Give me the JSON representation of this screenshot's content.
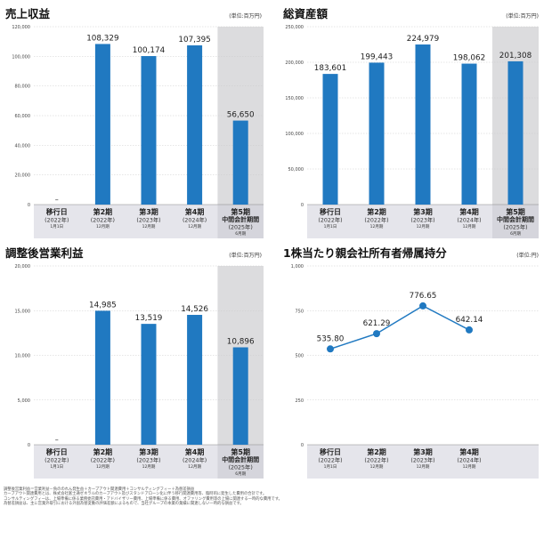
{
  "colors": {
    "bar": "#2079c1",
    "line": "#2079c1",
    "shade": "#dcdcde",
    "axis_band": "#d0d0da",
    "grid": "#cccccc"
  },
  "chart_data": [
    {
      "type": "bar",
      "title": "売上収益",
      "unit": "(単位:百万円)",
      "ylim": [
        0,
        120000
      ],
      "yticks": [
        "0",
        "20,000",
        "40,000",
        "60,000",
        "80,000",
        "100,000",
        "120,000"
      ],
      "ytick_values": [
        0,
        20000,
        40000,
        60000,
        80000,
        100000,
        120000
      ],
      "categories": [
        {
          "period": "移行日",
          "year": "(2022年)",
          "month": "1月1日"
        },
        {
          "period": "第2期",
          "year": "(2022年)",
          "month": "12月期"
        },
        {
          "period": "第3期",
          "year": "(2023年)",
          "month": "12月期"
        },
        {
          "period": "第4期",
          "year": "(2024年)",
          "month": "12月期"
        },
        {
          "period": "第5期",
          "period2": "中間会計期間",
          "year": "(2025年)",
          "month": "6月期"
        }
      ],
      "values": [
        null,
        108329,
        100174,
        107395,
        56650
      ],
      "labels": [
        "–",
        "108,329",
        "100,174",
        "107,395",
        "56,650"
      ],
      "highlight_index": 4
    },
    {
      "type": "bar",
      "title": "総資産額",
      "unit": "(単位:百万円)",
      "ylim": [
        0,
        250000
      ],
      "yticks": [
        "0",
        "50,000",
        "100,000",
        "150,000",
        "200,000",
        "250,000"
      ],
      "ytick_values": [
        0,
        50000,
        100000,
        150000,
        200000,
        250000
      ],
      "categories": [
        {
          "period": "移行日",
          "year": "(2022年)",
          "month": "1月1日"
        },
        {
          "period": "第2期",
          "year": "(2022年)",
          "month": "12月期"
        },
        {
          "period": "第3期",
          "year": "(2023年)",
          "month": "12月期"
        },
        {
          "period": "第4期",
          "year": "(2024年)",
          "month": "12月期"
        },
        {
          "period": "第5期",
          "period2": "中間会計期間",
          "year": "(2025年)",
          "month": "6月期"
        }
      ],
      "values": [
        183601,
        199443,
        224979,
        198062,
        201308
      ],
      "labels": [
        "183,601",
        "199,443",
        "224,979",
        "198,062",
        "201,308"
      ],
      "highlight_index": 4
    },
    {
      "type": "bar",
      "title": "調整後営業利益",
      "unit": "(単位:百万円)",
      "ylim": [
        0,
        20000
      ],
      "yticks": [
        "0",
        "5,000",
        "10,000",
        "15,000",
        "20,000"
      ],
      "ytick_values": [
        0,
        5000,
        10000,
        15000,
        20000
      ],
      "categories": [
        {
          "period": "移行日",
          "year": "(2022年)",
          "month": "1月1日"
        },
        {
          "period": "第2期",
          "year": "(2022年)",
          "month": "12月期"
        },
        {
          "period": "第3期",
          "year": "(2023年)",
          "month": "12月期"
        },
        {
          "period": "第4期",
          "year": "(2024年)",
          "month": "12月期"
        },
        {
          "period": "第5期",
          "period2": "中間会計期間",
          "year": "(2025年)",
          "month": "6月期"
        }
      ],
      "values": [
        null,
        14985,
        13519,
        14526,
        10896
      ],
      "labels": [
        "–",
        "14,985",
        "13,519",
        "14,526",
        "10,896"
      ],
      "highlight_index": 4
    },
    {
      "type": "line",
      "title": "1株当たり親会社所有者帰属持分",
      "unit": "(単位:円)",
      "ylim": [
        0,
        1000
      ],
      "yticks": [
        "0",
        "250",
        "500",
        "750",
        "1,000"
      ],
      "ytick_values": [
        0,
        250,
        500,
        750,
        1000
      ],
      "categories": [
        {
          "period": "移行日",
          "year": "(2022年)",
          "month": "1月1日"
        },
        {
          "period": "第2期",
          "year": "(2022年)",
          "month": "12月期"
        },
        {
          "period": "第3期",
          "year": "(2023年)",
          "month": "12月期"
        },
        {
          "period": "第4期",
          "year": "(2024年)",
          "month": "12月期"
        }
      ],
      "values": [
        535.8,
        621.29,
        776.65,
        642.14
      ],
      "labels": [
        "535.80",
        "621.29",
        "776.65",
        "642.14"
      ],
      "highlight_index": null
    }
  ],
  "notes": [
    "調整後営業利益＝営業利益－負ののれん発生益＋カーブアウト関連費用＋コンサルティングフィー＋為替差損益",
    "カーブアウト関連費用とは、株式会社富士通ゼネラルのカーブアウト及びスタンドアローン化に伴う移行関連費用等、臨時的に発生した費用の合計です。",
    "コンサルティングフィーは、上場準備に係る業務委託費用・アドバイザリー費用、上場準備に係る費用、オファリング費用等の上場に関連する一時的な費用です。",
    "為替差損益は、主に営業外取引における外国為替変動の評価差額によるもので、当社グループの本業の業績に関連しない一時的な損益です。"
  ]
}
